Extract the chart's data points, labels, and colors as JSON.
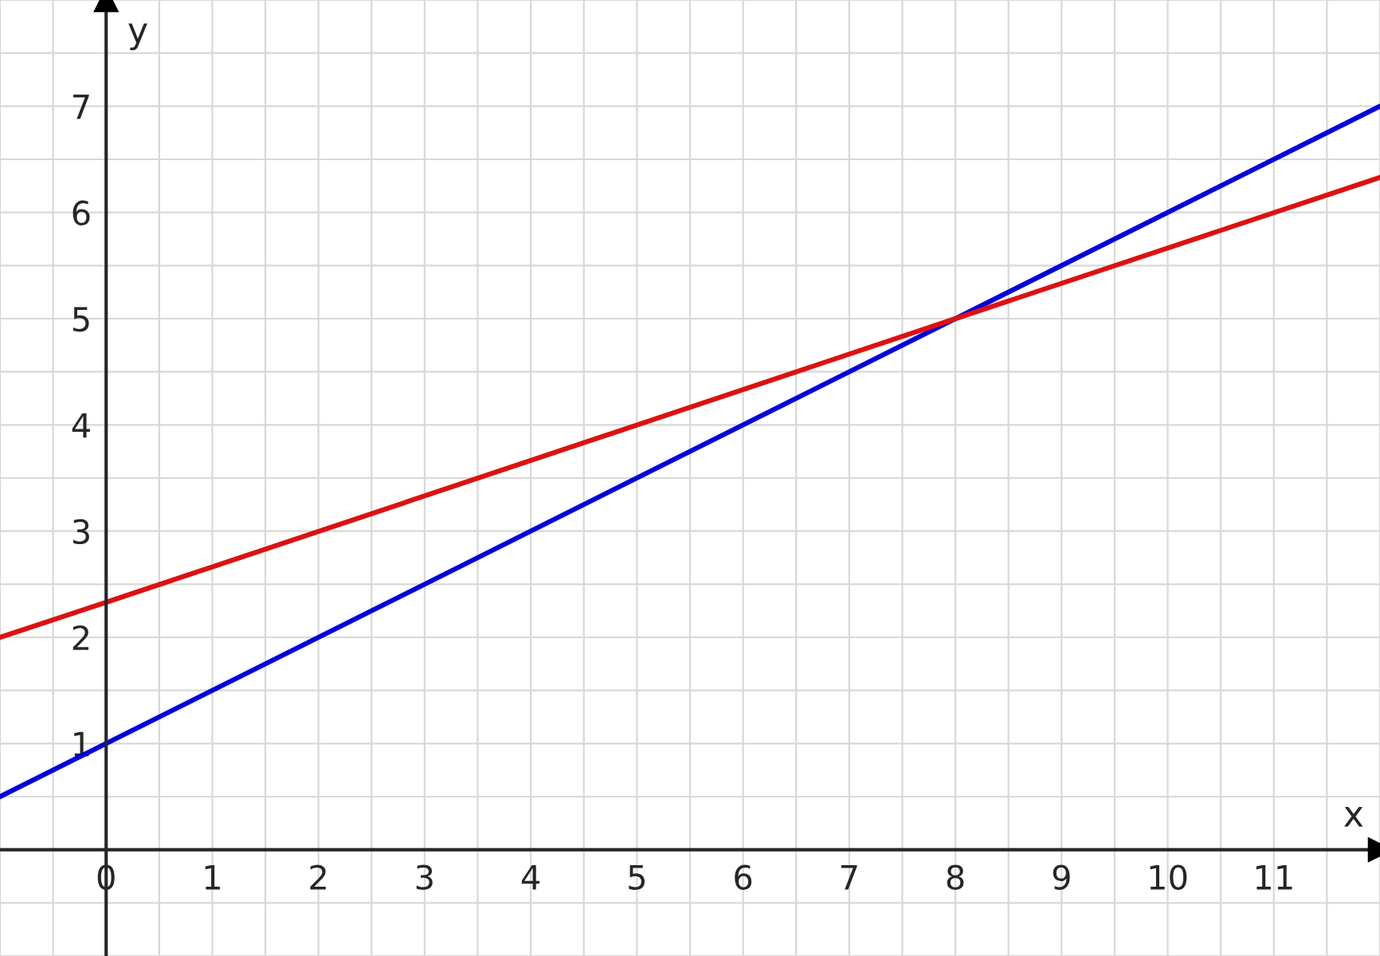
{
  "chart_data": {
    "type": "line",
    "xlabel": "x",
    "ylabel": "y",
    "series": [
      {
        "color": "#0000dd",
        "x": [
          -1,
          0,
          8,
          12
        ],
        "values": [
          0.5,
          1,
          5,
          7
        ]
      },
      {
        "color": "#dd1111",
        "x": [
          -1,
          0,
          8,
          12
        ],
        "values": [
          2,
          2.33,
          5,
          6.33
        ]
      }
    ],
    "xlim": [
      -1,
      12
    ],
    "ylim": [
      -1,
      8
    ],
    "xticks": [
      0,
      1,
      2,
      3,
      4,
      5,
      6,
      7,
      8,
      9,
      10,
      11
    ],
    "yticks": [
      1,
      2,
      3,
      4,
      5,
      6,
      7
    ],
    "grid": true,
    "legend": false,
    "marker": "none",
    "line_style": "solid"
  }
}
